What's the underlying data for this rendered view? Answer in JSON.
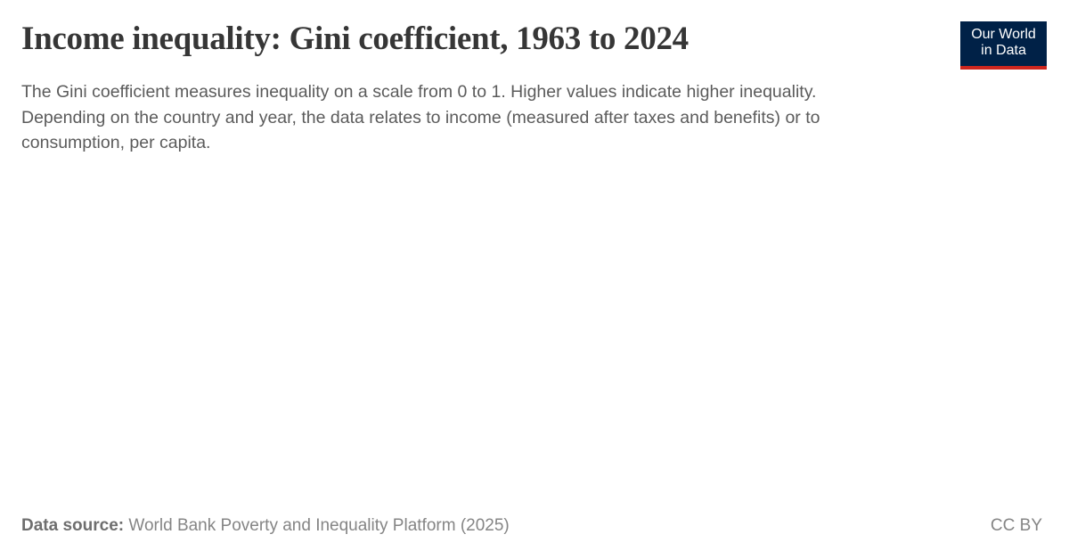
{
  "header": {
    "title": "Income inequality: Gini coefficient, 1963 to 2024",
    "subtitle_lines": [
      "The Gini coefficient measures inequality on a scale from 0 to 1. Higher values indicate higher inequality.",
      "Depending on the country and year, the data relates to income (measured after taxes and benefits) or to",
      "consumption, per capita."
    ]
  },
  "logo": {
    "lines": [
      "Our World",
      "in Data"
    ]
  },
  "footer": {
    "source_label": "Data source:",
    "source": "World Bank Poverty and Inequality Platform (2025)",
    "license": "CC BY"
  }
}
